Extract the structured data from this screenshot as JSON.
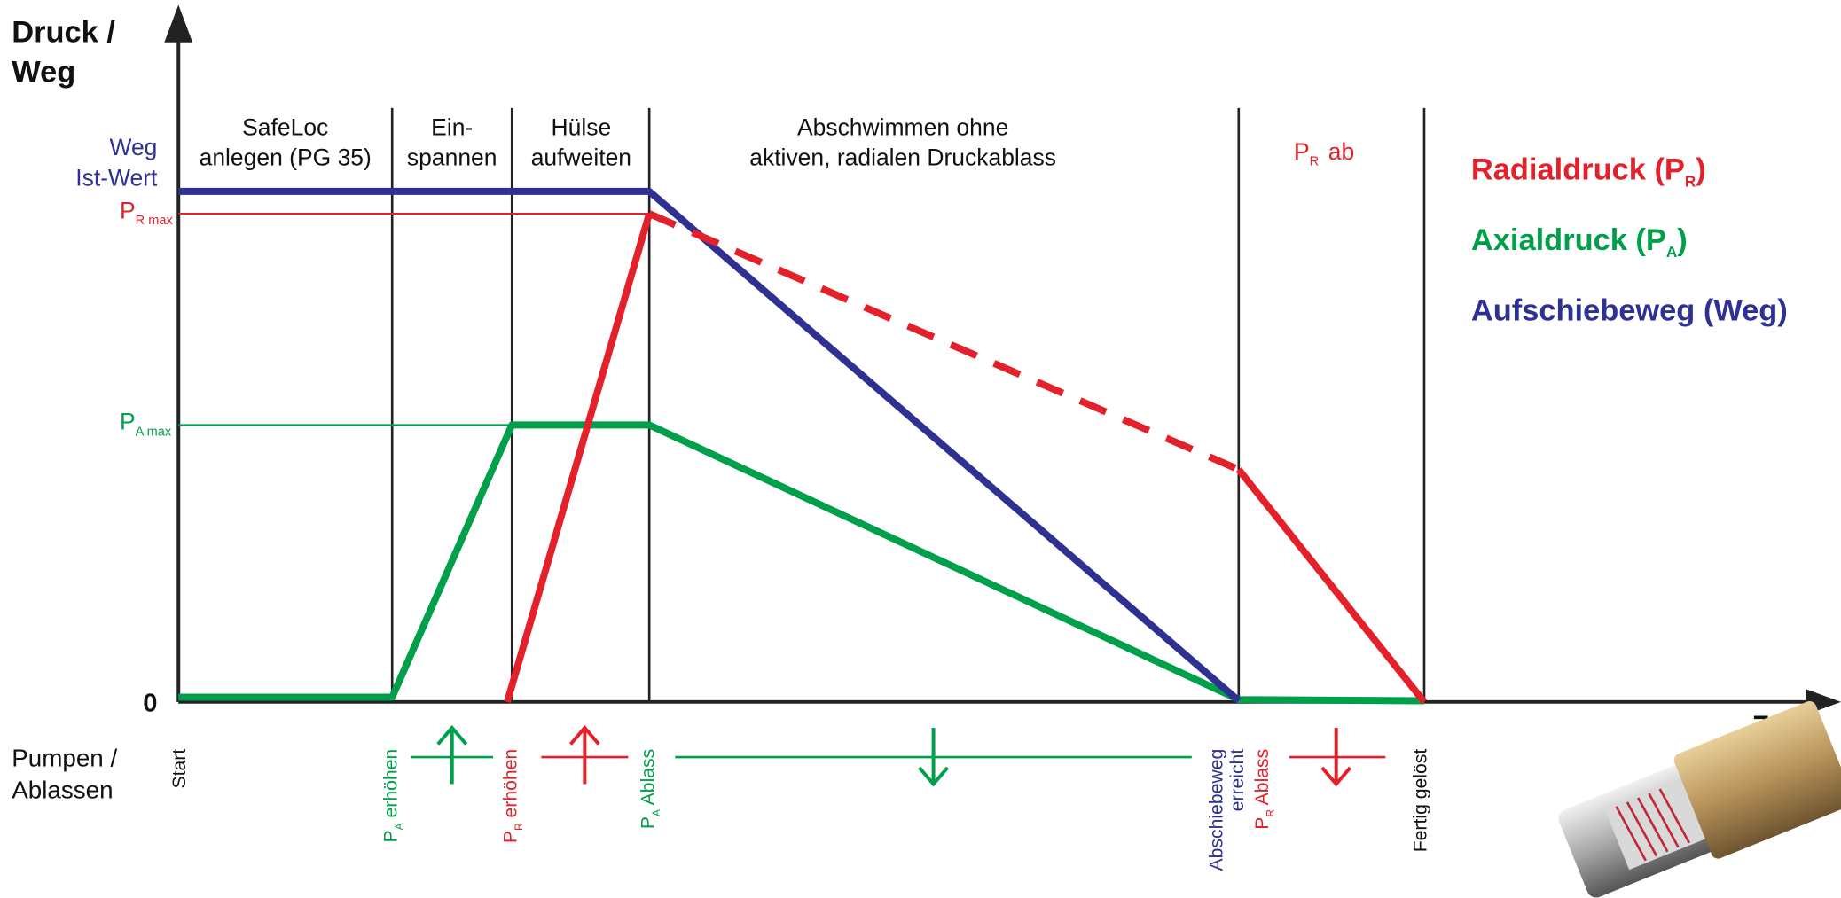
{
  "axis": {
    "y_title": [
      "Druck /",
      "Weg"
    ],
    "zero": "0",
    "x_title": "Zeit",
    "bottom_title": [
      "Pumpen /",
      "Ablassen"
    ]
  },
  "y_labels": {
    "weg": [
      "Weg",
      "Ist-Wert"
    ],
    "pr_max": {
      "p": "P",
      "sub": "R max"
    },
    "pa_max": {
      "p": "P",
      "sub": "A max"
    }
  },
  "phases": [
    [
      "SafeLoc",
      "anlegen (PG 35)"
    ],
    [
      "Ein-",
      "spannen"
    ],
    [
      "Hülse",
      "aufweiten"
    ],
    [
      "Abschwimmen ohne",
      "aktiven, radialen Druckablass"
    ]
  ],
  "pr_ab": {
    "p": "P",
    "sub": "R",
    "text": "ab"
  },
  "legend": [
    {
      "text": "Radialdruck (P",
      "sub": "R",
      "close": ")"
    },
    {
      "text": "Axialdruck (P",
      "sub": "A",
      "close": ")"
    },
    {
      "text": "Aufschiebeweg (Weg)"
    }
  ],
  "events": {
    "start": "Start",
    "pa_up": {
      "p": "P",
      "sub": "A",
      "text": " erhöhen"
    },
    "pr_up": {
      "p": "P",
      "sub": "R",
      "text": " erhöhen"
    },
    "pa_release": {
      "p": "P",
      "sub": "A",
      "text": " Ablass"
    },
    "path_reached": [
      "Abschiebeweg",
      "erreicht"
    ],
    "pr_release": {
      "p": "P",
      "sub": "R",
      "text": " Ablass"
    },
    "done": "Fertig gelöst"
  }
}
